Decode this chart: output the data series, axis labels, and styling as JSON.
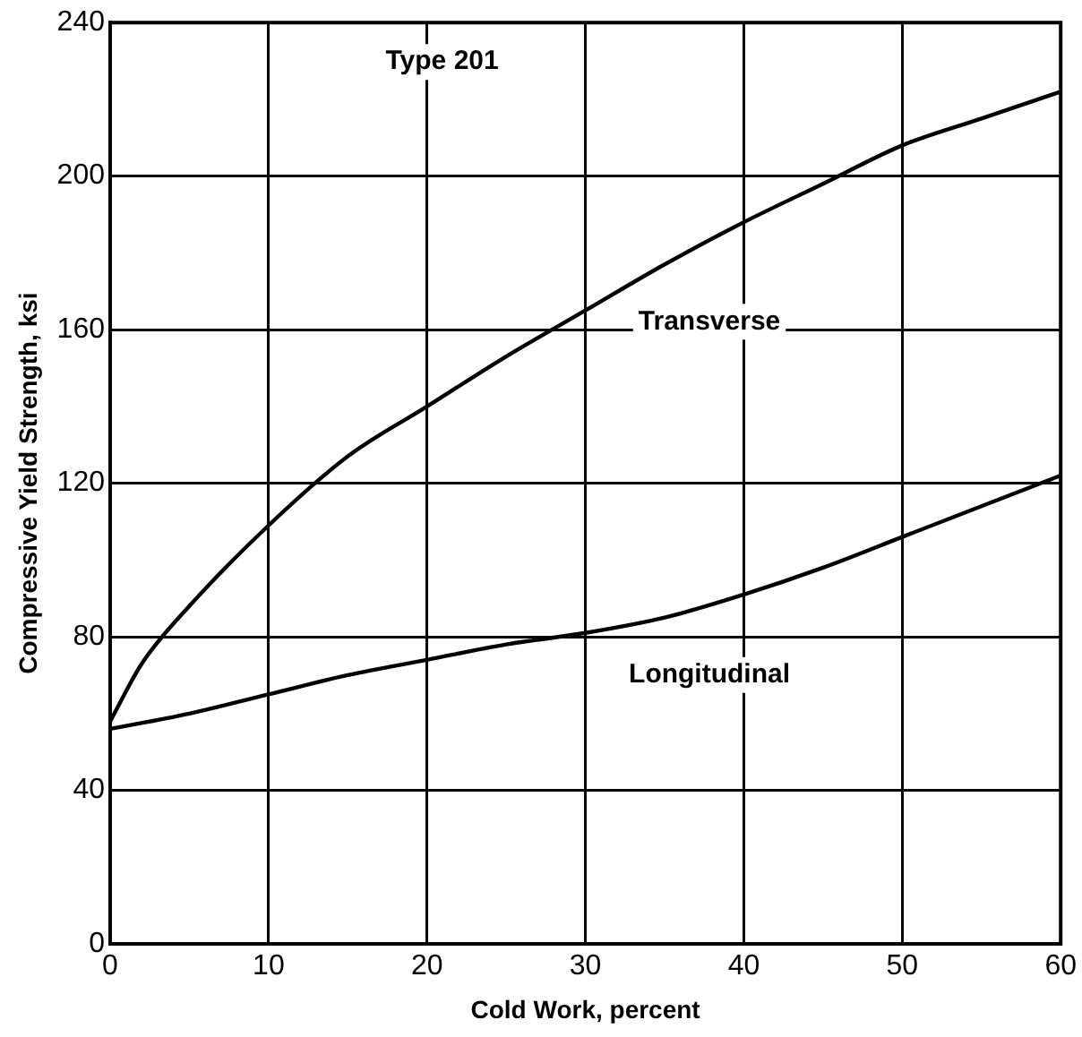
{
  "chart_data": {
    "type": "line",
    "title": "Type 201",
    "xlabel": "Cold Work, percent",
    "ylabel": "Compressive Yield Strength, ksi",
    "xlim": [
      0,
      60
    ],
    "xticks": [
      0,
      10,
      20,
      30,
      40,
      50,
      60
    ],
    "ylim": [
      0,
      240
    ],
    "yticks": [
      0,
      40,
      80,
      120,
      160,
      200,
      240
    ],
    "grid": true,
    "legend": false,
    "marker": "none",
    "line_style": "solid",
    "series": [
      {
        "name": "Transverse",
        "color": "#000000",
        "x": [
          0,
          2,
          5,
          10,
          15,
          20,
          25,
          30,
          35,
          40,
          45,
          50,
          55,
          60
        ],
        "values": [
          58,
          73,
          88,
          109,
          127,
          140,
          153,
          165,
          177,
          188,
          198,
          208,
          215,
          222
        ]
      },
      {
        "name": "Longitudinal",
        "color": "#000000",
        "x": [
          0,
          5,
          10,
          15,
          20,
          25,
          30,
          35,
          40,
          45,
          50,
          55,
          60
        ],
        "values": [
          56,
          60,
          65,
          70,
          74,
          78,
          81,
          85,
          91,
          98,
          106,
          114,
          122
        ]
      }
    ]
  }
}
